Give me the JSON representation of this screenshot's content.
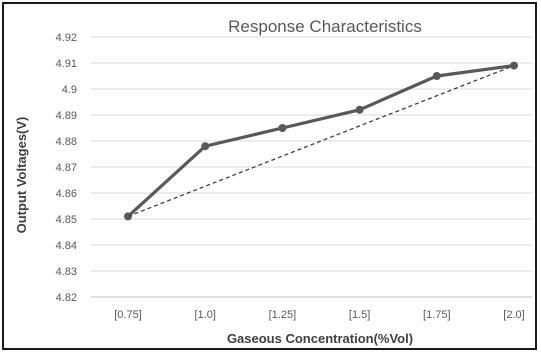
{
  "chart_data": {
    "type": "line",
    "title": "Response Characteristics",
    "xlabel": "Gaseous Concentration(%Vol)",
    "ylabel": "Output Voltages(V)",
    "categories": [
      "[0.75]",
      "[1.0]",
      "[1.25]",
      "[1.5]",
      "[1.75]",
      "[2.0]"
    ],
    "ylim": [
      4.82,
      4.92
    ],
    "yticks": [
      "4.82",
      "4.83",
      "4.84",
      "4.85",
      "4.86",
      "4.87",
      "4.88",
      "4.89",
      "4.9",
      "4.91",
      "4.92"
    ],
    "grid": true,
    "legend": "none",
    "series": [
      {
        "values": [
          4.851,
          4.878,
          4.885,
          4.892,
          4.905,
          4.909
        ],
        "color": "#595959",
        "style": "solid",
        "markers": true
      },
      {
        "values": [
          4.851,
          null,
          null,
          null,
          null,
          4.909
        ],
        "color": "#404040",
        "style": "dashed",
        "markers": false
      }
    ]
  }
}
